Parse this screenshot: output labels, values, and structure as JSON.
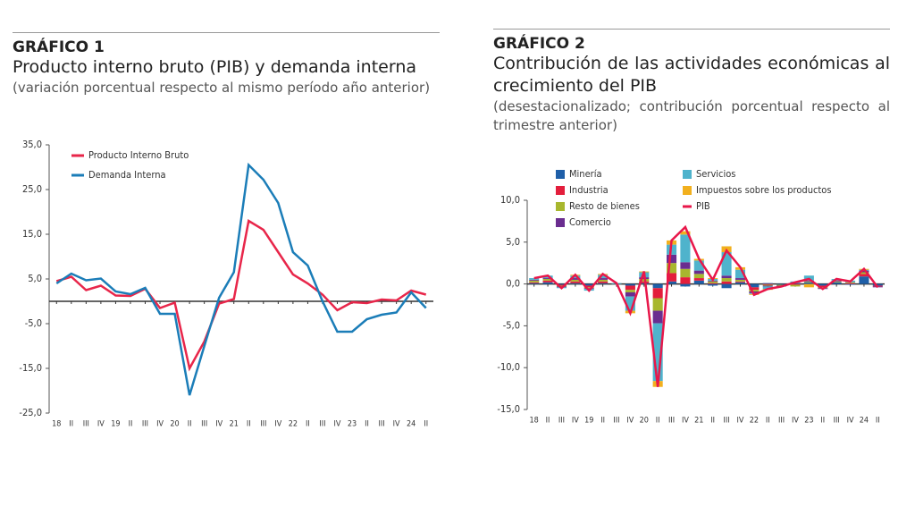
{
  "chart_data": [
    {
      "type": "line",
      "label": "GRÁFICO 1",
      "title": "Producto interno bruto (PIB) y demanda interna",
      "subtitle": "(variación porcentual respecto al mismo período año anterior)",
      "categories": [
        "18",
        "II",
        "III",
        "IV",
        "19",
        "II",
        "III",
        "IV",
        "20",
        "II",
        "III",
        "IV",
        "21",
        "II",
        "III",
        "IV",
        "22",
        "II",
        "III",
        "IV",
        "23",
        "II",
        "III",
        "IV",
        "24",
        "II"
      ],
      "series": [
        {
          "name": "Producto Interno Bruto",
          "color": "#e8264a",
          "values": [
            4.5,
            5.5,
            2.5,
            3.5,
            1.3,
            1.2,
            2.8,
            -1.5,
            -0.3,
            -15,
            -9,
            -0.5,
            0.5,
            18,
            16,
            11,
            6,
            4,
            1.5,
            -2,
            -0.2,
            -0.4,
            0.4,
            0.2,
            2.4,
            1.5
          ]
        },
        {
          "name": "Demanda Interna",
          "color": "#1b7db8",
          "values": [
            4,
            6.2,
            4.7,
            5.1,
            2.2,
            1.6,
            3,
            -2.8,
            -2.8,
            -21,
            -10,
            0.8,
            6.5,
            30.5,
            27.2,
            22,
            11,
            8,
            0,
            -6.8,
            -6.8,
            -4,
            -3,
            -2.5,
            2,
            -1.5
          ]
        }
      ],
      "ylim": [
        -25,
        35
      ],
      "yticks": [
        {
          "value": -25,
          "label": "-25,0"
        },
        {
          "value": -15,
          "label": "-15,0"
        },
        {
          "value": -5,
          "label": "-5,0"
        },
        {
          "value": 5,
          "label": "5,0"
        },
        {
          "value": 15,
          "label": "15,0"
        },
        {
          "value": 25,
          "label": "25,0"
        },
        {
          "value": 35,
          "label": "35,0"
        }
      ]
    },
    {
      "type": "bar",
      "stacked": true,
      "label": "GRÁFICO 2",
      "title": "Contribución de las actividades económicas al crecimiento del PIB",
      "subtitle": "(desestacionalizado; contribución porcentual respecto al trimestre anterior)",
      "categories": [
        "18",
        "II",
        "III",
        "IV",
        "19",
        "II",
        "III",
        "IV",
        "20",
        "II",
        "III",
        "IV",
        "21",
        "II",
        "III",
        "IV",
        "22",
        "II",
        "III",
        "IV",
        "23",
        "II",
        "III",
        "IV",
        "24",
        "II"
      ],
      "series": [
        {
          "name": "Minería",
          "color": "#1f5fa8",
          "values": [
            0.1,
            0.2,
            -0.1,
            0.1,
            -0.2,
            0.1,
            0,
            -0.2,
            0.1,
            -0.5,
            0.3,
            -0.3,
            0.4,
            -0.2,
            -0.5,
            0.2,
            -0.4,
            0.1,
            -0.1,
            0.1,
            0.2,
            -0.2,
            0.2,
            -0.1,
            0.9,
            -0.2
          ]
        },
        {
          "name": "Industria",
          "color": "#e31e3c",
          "values": [
            0.1,
            0.2,
            -0.1,
            0.2,
            -0.2,
            0.2,
            0,
            -0.5,
            0.2,
            -1.2,
            1.0,
            0.8,
            0.3,
            0.1,
            0.3,
            0.1,
            -0.3,
            -0.1,
            0,
            -0.1,
            0,
            -0.2,
            0,
            0.1,
            0.3,
            -0.1
          ]
        },
        {
          "name": "Resto de bienes",
          "color": "#a8b72e",
          "values": [
            0.2,
            0.2,
            -0.1,
            0.2,
            -0.1,
            0.2,
            0,
            -0.3,
            0.3,
            -1.5,
            1.2,
            1.0,
            0.5,
            0.2,
            0.4,
            0.2,
            -0.2,
            -0.1,
            -0.1,
            -0.2,
            0.1,
            -0.1,
            0.1,
            0.1,
            0.2,
            0
          ]
        },
        {
          "name": "Comercio",
          "color": "#6a2d8f",
          "values": [
            0.1,
            0.1,
            -0.1,
            0.2,
            -0.1,
            0.2,
            0,
            -0.5,
            0.2,
            -1.5,
            1.0,
            0.8,
            0.4,
            0.1,
            0.3,
            0.2,
            -0.2,
            -0.1,
            -0.1,
            0,
            0.1,
            -0.1,
            0.1,
            0,
            0.2,
            -0.1
          ]
        },
        {
          "name": "Servicios",
          "color": "#4fb3cc",
          "values": [
            0.2,
            0.3,
            -0.1,
            0.3,
            -0.2,
            0.4,
            0.1,
            -1.7,
            0.6,
            -6.9,
            1.2,
            3.3,
            1.2,
            0.2,
            2.8,
            1.0,
            -0.1,
            -0.3,
            0,
            0.2,
            0.6,
            0,
            0.2,
            0.2,
            0.1,
            0
          ]
        },
        {
          "name": "Impuestos sobre los productos",
          "color": "#f2b01e",
          "values": [
            0,
            0,
            0,
            0.1,
            0,
            0.1,
            0,
            -0.3,
            0.1,
            -0.7,
            0.5,
            0.4,
            0.2,
            0.1,
            0.7,
            0.3,
            -0.1,
            -0.1,
            0,
            0,
            -0.4,
            0,
            0,
            0,
            0.1,
            0
          ]
        },
        {
          "name": "PIB",
          "type": "line",
          "color": "#e8174a",
          "values": [
            0.7,
            1.0,
            -0.5,
            1.1,
            -0.8,
            1.2,
            0.1,
            -3.5,
            1.5,
            -12.3,
            5.2,
            6.8,
            3.0,
            0.5,
            4.0,
            2.0,
            -1.3,
            -0.6,
            -0.3,
            0.2,
            0.6,
            -0.6,
            0.6,
            0.3,
            1.8,
            -0.4
          ]
        }
      ],
      "ylim": [
        -15,
        10
      ],
      "yticks": [
        {
          "value": -15,
          "label": "-15,0"
        },
        {
          "value": -10,
          "label": "-10,0"
        },
        {
          "value": -5,
          "label": "-5,0"
        },
        {
          "value": 0,
          "label": "0,0"
        },
        {
          "value": 5,
          "label": "5,0"
        },
        {
          "value": 10,
          "label": "10,0"
        }
      ]
    }
  ]
}
